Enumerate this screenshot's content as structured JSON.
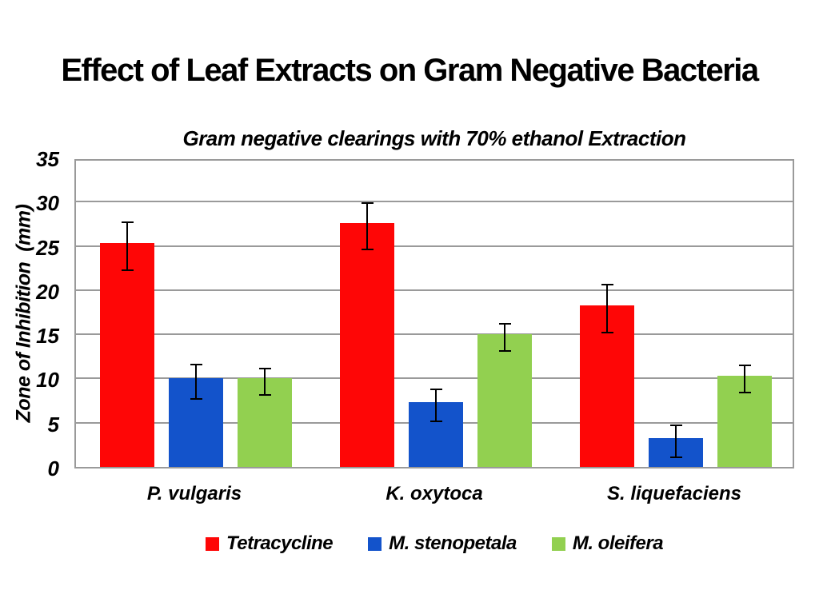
{
  "page": {
    "background": "#FFFFFF"
  },
  "title": "Effect of Leaf Extracts on Gram Negative Bacteria",
  "chart_data": {
    "type": "bar",
    "title": "Gram negative clearings with 70% ethanol Extraction",
    "xlabel": "",
    "ylabel": "Zone of Inhibition  (mm)",
    "ylim": [
      0,
      35
    ],
    "yticks": [
      0,
      5,
      10,
      15,
      20,
      25,
      30,
      35
    ],
    "grid": true,
    "gridline_color": "#9A9A9A",
    "error_bar_color": "#000000",
    "legend_position": "bottom",
    "categories": [
      "P. vulgaris",
      "K. oxytoca",
      "S. liquefaciens"
    ],
    "series": [
      {
        "name": "Tetracycline",
        "color": "#FE0606",
        "values": [
          25.3,
          27.6,
          18.3
        ],
        "errors": [
          2.8,
          2.7,
          2.8
        ]
      },
      {
        "name": "M. stenopetala",
        "color": "#1353CB",
        "values": [
          10.0,
          7.3,
          3.3
        ],
        "errors": [
          2.0,
          1.9,
          1.9
        ]
      },
      {
        "name": "M. oleifera",
        "color": "#92D050",
        "values": [
          10.0,
          15.0,
          10.3
        ],
        "errors": [
          1.6,
          1.6,
          1.6
        ]
      }
    ]
  }
}
